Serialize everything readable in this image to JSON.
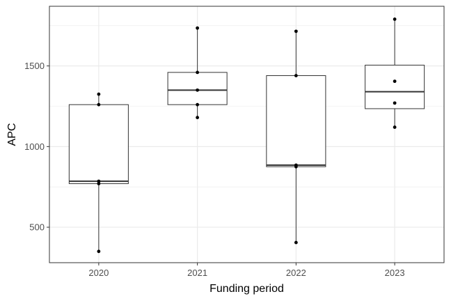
{
  "chart_data": {
    "type": "box",
    "title": "",
    "xlabel": "Funding period",
    "ylabel": "APC",
    "categories": [
      "2020",
      "2021",
      "2022",
      "2023"
    ],
    "ylim": [
      280,
      1870
    ],
    "yticks": [
      500,
      1000,
      1500
    ],
    "ytick_labels": [
      "500",
      "1000",
      "1500"
    ],
    "grid": true,
    "boxes": [
      {
        "category": "2020",
        "whisker_low": 350,
        "q1": 770,
        "median": 785,
        "q3": 1260,
        "whisker_high": 1325
      },
      {
        "category": "2021",
        "whisker_low": 1180,
        "q1": 1260,
        "median": 1350,
        "q3": 1460,
        "whisker_high": 1735
      },
      {
        "category": "2022",
        "whisker_low": 405,
        "q1": 875,
        "median": 885,
        "q3": 1440,
        "whisker_high": 1715
      },
      {
        "category": "2023",
        "whisker_low": 1120,
        "q1": 1235,
        "median": 1340,
        "q3": 1505,
        "whisker_high": 1790
      }
    ],
    "points": [
      {
        "category": "2020",
        "values": [
          1325,
          1260,
          785,
          770,
          350
        ]
      },
      {
        "category": "2021",
        "values": [
          1735,
          1460,
          1350,
          1260,
          1180
        ]
      },
      {
        "category": "2022",
        "values": [
          1715,
          1440,
          885,
          875,
          405
        ]
      },
      {
        "category": "2023",
        "values": [
          1790,
          1405,
          1270,
          1120
        ]
      }
    ],
    "colors": {
      "box_fill": "#ffffff",
      "box_stroke": "#333333",
      "median": "#333333",
      "point": "#000000",
      "grid": "#ebebeb",
      "panel_border": "#333333"
    }
  }
}
